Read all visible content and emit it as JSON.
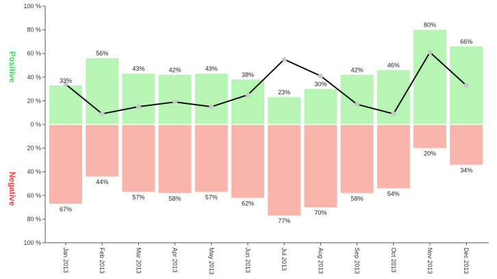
{
  "chart_data": {
    "type": "bar",
    "categories": [
      "Jan 2013",
      "Feb 2013",
      "Mar 2013",
      "Apr 2013",
      "May 2013",
      "Jun 2013",
      "Jul 2013",
      "Aug 2013",
      "Sep 2013",
      "Oct 2013",
      "Nov 2013",
      "Dec 2013"
    ],
    "series": [
      {
        "name": "Positive",
        "values": [
          33,
          56,
          43,
          42,
          43,
          38,
          23,
          30,
          42,
          46,
          80,
          66
        ],
        "color": "#b7f5b4"
      },
      {
        "name": "Negative",
        "values": [
          67,
          44,
          57,
          58,
          57,
          62,
          77,
          70,
          58,
          54,
          20,
          34
        ],
        "color": "#f9b5ac"
      }
    ],
    "line": {
      "values": [
        34,
        9,
        15,
        19,
        15,
        25,
        55,
        41,
        17,
        9,
        61,
        33
      ],
      "color": "#111111",
      "marker_color": "#c8c8c8"
    },
    "value_labels": {
      "positive": [
        "33%",
        "56%",
        "43%",
        "42%",
        "43%",
        "38%",
        "23%",
        "30%",
        "42%",
        "46%",
        "80%",
        "66%"
      ],
      "negative": [
        "67%",
        "44%",
        "57%",
        "58%",
        "57%",
        "62%",
        "77%",
        "70%",
        "58%",
        "54%",
        "20%",
        "34%"
      ]
    },
    "y_ticks": [
      "100 %",
      "80 %",
      "60 %",
      "40 %",
      "20 %",
      "0 %",
      "20 %",
      "40 %",
      "60 %",
      "80 %",
      "100 %"
    ],
    "ylim": [
      -100,
      100
    ],
    "side_labels": {
      "positive": {
        "text": "Positive",
        "color": "#2ee65c"
      },
      "negative": {
        "text": "Negative",
        "color": "#ff3a3a"
      }
    },
    "grid": false
  }
}
